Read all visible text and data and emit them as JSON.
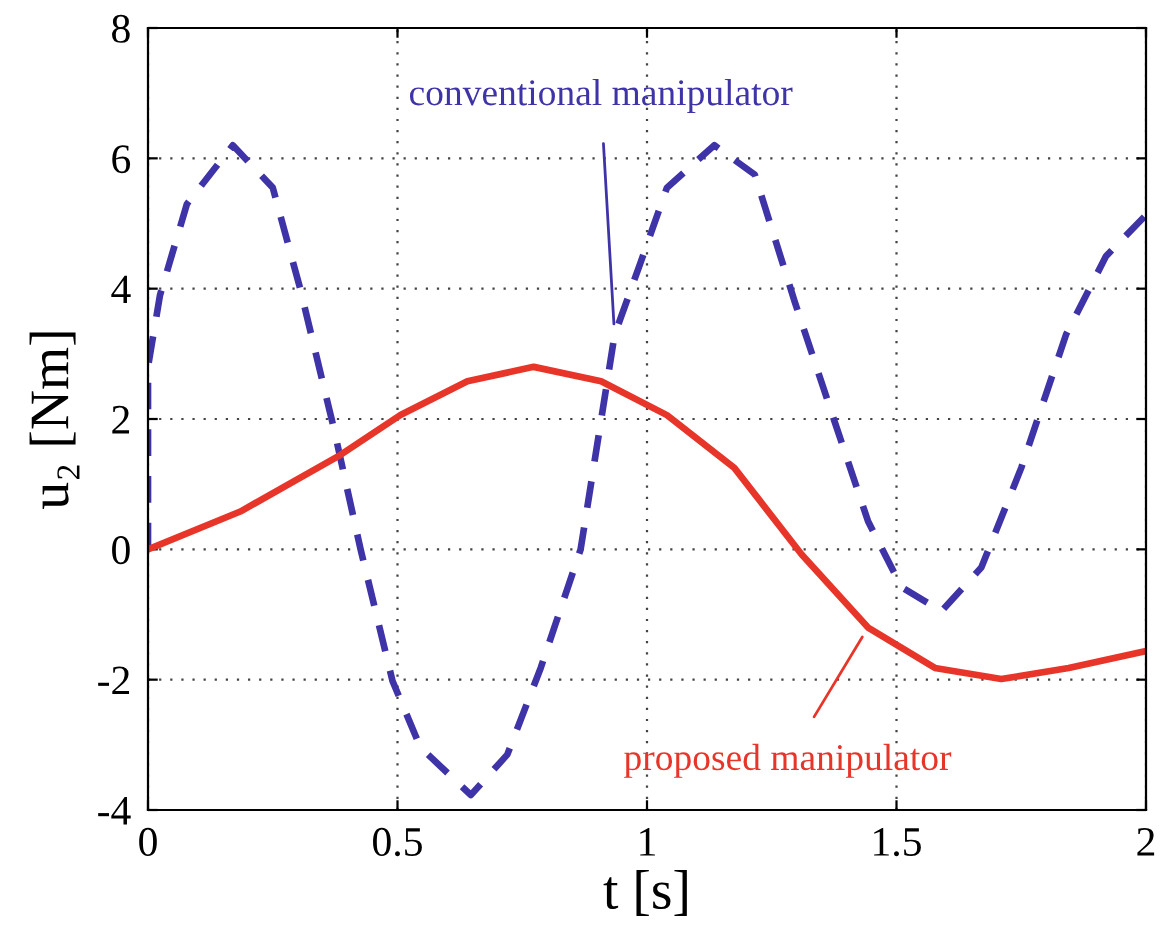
{
  "chart_data": {
    "type": "line",
    "xlabel": "t [s]",
    "ylabel": "u₂ [Nm]",
    "xlim": [
      0,
      2
    ],
    "ylim": [
      -4,
      8
    ],
    "xticks": [
      0,
      0.5,
      1,
      1.5,
      2
    ],
    "yticks": [
      -4,
      -2,
      0,
      2,
      4,
      6,
      8
    ],
    "grid": true,
    "series": [
      {
        "name": "conventional manipulator",
        "color": "#3f33a8",
        "line_style": "dashed",
        "x": [
          0,
          0,
          0.024,
          0.078,
          0.17,
          0.25,
          0.305,
          0.372,
          0.426,
          0.49,
          0.546,
          0.647,
          0.72,
          0.787,
          0.867,
          0.935,
          0.988,
          1.04,
          1.135,
          1.216,
          1.296,
          1.376,
          1.443,
          1.51,
          1.59,
          1.67,
          1.75,
          1.84,
          1.92,
          2.0
        ],
        "values": [
          0,
          2.8,
          3.9,
          5.3,
          6.2,
          5.55,
          4.0,
          1.87,
          0,
          -2.02,
          -3.04,
          -3.77,
          -3.15,
          -1.82,
          0,
          3.29,
          4.42,
          5.55,
          6.2,
          5.75,
          3.8,
          1.96,
          0.43,
          -0.58,
          -0.95,
          -0.28,
          1.25,
          3.3,
          4.5,
          5.13
        ]
      },
      {
        "name": "proposed manipulator",
        "color": "#e8352a",
        "line_style": "solid",
        "x": [
          0,
          0.185,
          0.386,
          0.506,
          0.64,
          0.773,
          0.908,
          1.04,
          1.175,
          1.31,
          1.443,
          1.577,
          1.71,
          1.845,
          2.0
        ],
        "values": [
          0,
          0.58,
          1.45,
          2.06,
          2.58,
          2.8,
          2.58,
          2.06,
          1.25,
          -0.08,
          -1.2,
          -1.82,
          -1.99,
          -1.82,
          -1.56
        ]
      }
    ]
  }
}
